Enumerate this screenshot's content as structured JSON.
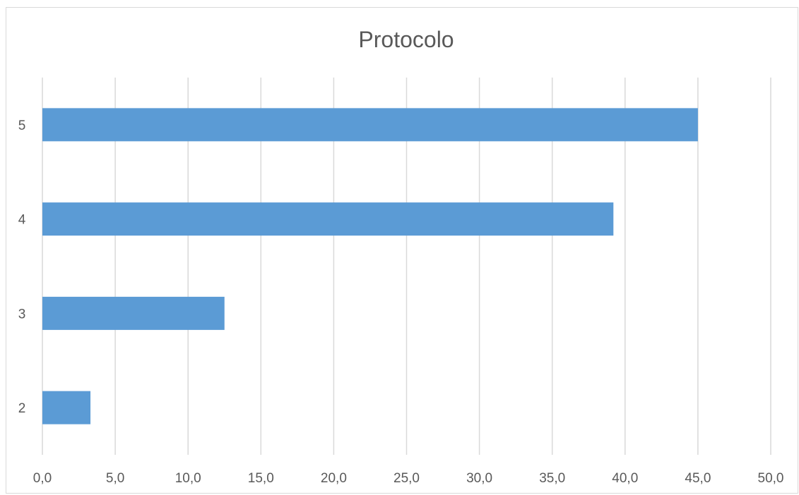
{
  "chart_data": {
    "type": "bar",
    "orientation": "horizontal",
    "title": "Protocolo",
    "xlabel": "",
    "ylabel": "",
    "categories": [
      "2",
      "3",
      "4",
      "5"
    ],
    "values": [
      3.3,
      12.5,
      39.2,
      45.0
    ],
    "xlim": [
      0,
      50
    ],
    "x_ticks": [
      "0,0",
      "5,0",
      "10,0",
      "15,0",
      "20,0",
      "25,0",
      "30,0",
      "35,0",
      "40,0",
      "45,0",
      "50,0"
    ],
    "grid": "vertical",
    "legend": "none",
    "bar_color": "#5b9bd5",
    "grid_color": "#d9d9d9"
  }
}
